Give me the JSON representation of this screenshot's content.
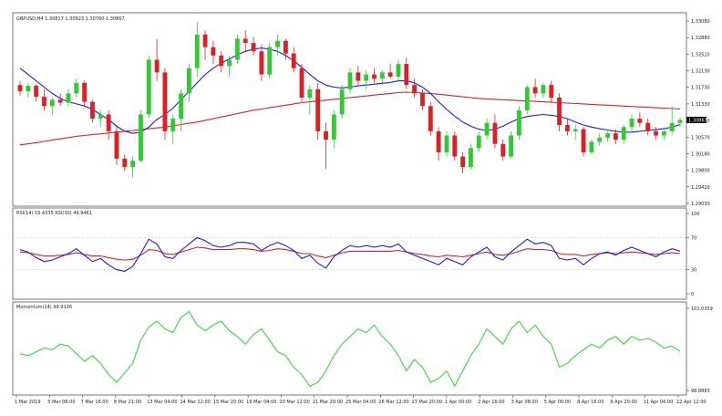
{
  "chart_data": [
    {
      "type": "candlestick",
      "title": "GBPUSD,H4  1.30817 1.30923 1.30760 1.30867",
      "price_ticks": [
        "1.33080",
        "1.32880",
        "1.32510",
        "1.32130",
        "1.31730",
        "1.31330",
        "1.30950",
        "1.30570",
        "1.30180",
        "1.29800",
        "1.29420",
        "1.29030"
      ],
      "current_price_label": "1.30867",
      "ylim": [
        1.2895,
        1.332
      ],
      "x_labels": [
        "1 Mar 2019",
        "5 Mar 08:00",
        "7 Mar 16:00",
        "8 Mar 21:00",
        "13 Mar 04:00",
        "14 Mar 12:00",
        "15 Mar 20:00",
        "19 Mar 04:00",
        "20 Mar 12:00",
        "21 Mar 20:00",
        "25 Mar 04:00",
        "26 Mar 12:00",
        "27 Mar 20:00",
        "1 Apr 00:00",
        "2 Apr 16:00",
        "3 Apr 08:00",
        "5 Apr 00:00",
        "8 Apr 16:00",
        "9 Apr 20:00",
        "11 Apr 04:00",
        "12 Apr 12:00"
      ],
      "candles": [
        [
          1.317,
          1.318,
          1.3145,
          1.3155
        ],
        [
          1.3155,
          1.3175,
          1.314,
          1.3168
        ],
        [
          1.3168,
          1.3172,
          1.313,
          1.3142
        ],
        [
          1.3142,
          1.316,
          1.311,
          1.312
        ],
        [
          1.312,
          1.314,
          1.31,
          1.3135
        ],
        [
          1.3135,
          1.315,
          1.312,
          1.3128
        ],
        [
          1.3128,
          1.316,
          1.312,
          1.315
        ],
        [
          1.315,
          1.3185,
          1.314,
          1.3175
        ],
        [
          1.3175,
          1.318,
          1.312,
          1.313
        ],
        [
          1.313,
          1.3135,
          1.308,
          1.309
        ],
        [
          1.309,
          1.311,
          1.307,
          1.31
        ],
        [
          1.31,
          1.311,
          1.304,
          1.306
        ],
        [
          1.306,
          1.3075,
          1.298,
          1.2995
        ],
        [
          1.2995,
          1.3005,
          1.2965,
          1.2975
        ],
        [
          1.2975,
          1.3,
          1.295,
          1.299
        ],
        [
          1.299,
          1.311,
          1.2985,
          1.31
        ],
        [
          1.31,
          1.324,
          1.309,
          1.323
        ],
        [
          1.323,
          1.328,
          1.318,
          1.32
        ],
        [
          1.32,
          1.321,
          1.304,
          1.306
        ],
        [
          1.306,
          1.31,
          1.303,
          1.309
        ],
        [
          1.309,
          1.316,
          1.306,
          1.315
        ],
        [
          1.315,
          1.322,
          1.313,
          1.321
        ],
        [
          1.321,
          1.332,
          1.319,
          1.329
        ],
        [
          1.329,
          1.33,
          1.323,
          1.326
        ],
        [
          1.326,
          1.3275,
          1.322,
          1.324
        ],
        [
          1.324,
          1.325,
          1.32,
          1.3215
        ],
        [
          1.3215,
          1.324,
          1.319,
          1.323
        ],
        [
          1.323,
          1.329,
          1.322,
          1.328
        ],
        [
          1.328,
          1.33,
          1.325,
          1.327
        ],
        [
          1.327,
          1.3285,
          1.324,
          1.325
        ],
        [
          1.325,
          1.3265,
          1.318,
          1.3195
        ],
        [
          1.3195,
          1.327,
          1.3185,
          1.326
        ],
        [
          1.326,
          1.329,
          1.324,
          1.3275
        ],
        [
          1.3275,
          1.328,
          1.323,
          1.3245
        ],
        [
          1.3245,
          1.326,
          1.32,
          1.321
        ],
        [
          1.321,
          1.322,
          1.313,
          1.314
        ],
        [
          1.314,
          1.317,
          1.31,
          1.316
        ],
        [
          1.316,
          1.3175,
          1.304,
          1.306
        ],
        [
          1.306,
          1.308,
          1.297,
          1.304
        ],
        [
          1.304,
          1.311,
          1.302,
          1.31
        ],
        [
          1.31,
          1.317,
          1.309,
          1.316
        ],
        [
          1.316,
          1.321,
          1.315,
          1.32
        ],
        [
          1.32,
          1.3215,
          1.317,
          1.318
        ],
        [
          1.318,
          1.3205,
          1.316,
          1.3195
        ],
        [
          1.3195,
          1.321,
          1.3175,
          1.3185
        ],
        [
          1.3185,
          1.3205,
          1.317,
          1.32
        ],
        [
          1.32,
          1.322,
          1.3185,
          1.319
        ],
        [
          1.319,
          1.323,
          1.318,
          1.322
        ],
        [
          1.322,
          1.3235,
          1.316,
          1.317
        ],
        [
          1.317,
          1.3185,
          1.314,
          1.315
        ],
        [
          1.315,
          1.316,
          1.311,
          1.312
        ],
        [
          1.312,
          1.313,
          1.305,
          1.306
        ],
        [
          1.306,
          1.307,
          1.299,
          1.301
        ],
        [
          1.301,
          1.306,
          1.3,
          1.305
        ],
        [
          1.305,
          1.306,
          1.299,
          1.3
        ],
        [
          1.3,
          1.301,
          1.296,
          1.2975
        ],
        [
          1.2975,
          1.303,
          1.297,
          1.302
        ],
        [
          1.302,
          1.306,
          1.301,
          1.305
        ],
        [
          1.305,
          1.309,
          1.304,
          1.308
        ],
        [
          1.308,
          1.31,
          1.302,
          1.303
        ],
        [
          1.303,
          1.304,
          1.299,
          1.3
        ],
        [
          1.3,
          1.306,
          1.2995,
          1.305
        ],
        [
          1.305,
          1.312,
          1.304,
          1.311
        ],
        [
          1.311,
          1.317,
          1.31,
          1.3165
        ],
        [
          1.3165,
          1.3185,
          1.314,
          1.315
        ],
        [
          1.315,
          1.3175,
          1.314,
          1.317
        ],
        [
          1.317,
          1.318,
          1.313,
          1.314
        ],
        [
          1.314,
          1.315,
          1.306,
          1.3075
        ],
        [
          1.3075,
          1.309,
          1.305,
          1.306
        ],
        [
          1.306,
          1.3075,
          1.304,
          1.3065
        ],
        [
          1.3065,
          1.307,
          1.3,
          1.301
        ],
        [
          1.301,
          1.304,
          1.3005,
          1.3035
        ],
        [
          1.3035,
          1.3055,
          1.3025,
          1.3045
        ],
        [
          1.3045,
          1.306,
          1.3035,
          1.3055
        ],
        [
          1.3055,
          1.3065,
          1.303,
          1.304
        ],
        [
          1.304,
          1.3075,
          1.303,
          1.307
        ],
        [
          1.307,
          1.31,
          1.306,
          1.309
        ],
        [
          1.309,
          1.3105,
          1.307,
          1.308
        ],
        [
          1.308,
          1.309,
          1.305,
          1.306
        ],
        [
          1.306,
          1.307,
          1.304,
          1.305
        ],
        [
          1.305,
          1.3065,
          1.304,
          1.306
        ],
        [
          1.306,
          1.312,
          1.305,
          1.308
        ],
        [
          1.308,
          1.3092,
          1.307,
          1.3087
        ]
      ],
      "ma_fast": {
        "color": "#1a1aff",
        "values": [
          1.321,
          1.3195,
          1.318,
          1.3165,
          1.315,
          1.3138,
          1.313,
          1.3125,
          1.312,
          1.3112,
          1.31,
          1.3088,
          1.3072,
          1.306,
          1.3055,
          1.3058,
          1.307,
          1.3088,
          1.31,
          1.3115,
          1.3135,
          1.3155,
          1.3175,
          1.3195,
          1.321,
          1.3222,
          1.3232,
          1.3242,
          1.325,
          1.3255,
          1.3258,
          1.3255,
          1.325,
          1.324,
          1.3228,
          1.3212,
          1.3195,
          1.318,
          1.317,
          1.3165,
          1.3163,
          1.3165,
          1.3168,
          1.317,
          1.3172,
          1.3174,
          1.3176,
          1.318,
          1.318,
          1.3175,
          1.3165,
          1.315,
          1.313,
          1.3112,
          1.3096,
          1.3082,
          1.3072,
          1.3065,
          1.3062,
          1.3065,
          1.3072,
          1.3082,
          1.309,
          1.3095,
          1.3098,
          1.31,
          1.3098,
          1.3095,
          1.309,
          1.3082,
          1.3075,
          1.307,
          1.3066,
          1.3063,
          1.306,
          1.3058,
          1.3058,
          1.306,
          1.3062,
          1.3064,
          1.3066,
          1.307,
          1.3076
        ]
      },
      "ma_slow": {
        "color": "#e02020",
        "values": [
          1.3028,
          1.303,
          1.3033,
          1.3036,
          1.3039,
          1.3042,
          1.3045,
          1.3048,
          1.305,
          1.3052,
          1.3054,
          1.3056,
          1.3058,
          1.306,
          1.3062,
          1.3064,
          1.3066,
          1.3068,
          1.307,
          1.3073,
          1.3076,
          1.3079,
          1.3082,
          1.3086,
          1.309,
          1.3094,
          1.3098,
          1.3102,
          1.3106,
          1.311,
          1.3113,
          1.3116,
          1.3119,
          1.3122,
          1.3125,
          1.3128,
          1.313,
          1.3132,
          1.3134,
          1.3136,
          1.3138,
          1.314,
          1.3142,
          1.3144,
          1.3146,
          1.3148,
          1.315,
          1.3152,
          1.3153,
          1.3152,
          1.3151,
          1.315,
          1.3148,
          1.3146,
          1.3144,
          1.3142,
          1.314,
          1.3138,
          1.3137,
          1.3136,
          1.3135,
          1.3134,
          1.3133,
          1.3132,
          1.3131,
          1.313,
          1.3129,
          1.3128,
          1.3127,
          1.3126,
          1.3125,
          1.3124,
          1.3123,
          1.3122,
          1.3121,
          1.312,
          1.3119,
          1.3118,
          1.3117,
          1.3116,
          1.3115,
          1.3114,
          1.3113
        ]
      },
      "up_color": "#2ecc2e",
      "down_color": "#e02020"
    },
    {
      "type": "line",
      "title": "RSI(14) 53.4335  RSI(30) 49.9461",
      "y_ticks": [
        "100",
        "70",
        "30",
        "0"
      ],
      "ylim": [
        0,
        100
      ],
      "series": [
        {
          "name": "RSI(14)",
          "color": "#1a1aff",
          "values": [
            55,
            52,
            45,
            40,
            42,
            46,
            50,
            56,
            48,
            40,
            44,
            36,
            30,
            28,
            34,
            50,
            68,
            62,
            46,
            44,
            54,
            62,
            70,
            66,
            60,
            58,
            60,
            64,
            64,
            62,
            54,
            60,
            64,
            60,
            54,
            44,
            48,
            38,
            32,
            46,
            54,
            60,
            58,
            60,
            58,
            60,
            58,
            62,
            52,
            48,
            44,
            40,
            36,
            44,
            40,
            36,
            46,
            52,
            58,
            46,
            42,
            52,
            60,
            68,
            62,
            64,
            60,
            44,
            42,
            44,
            36,
            44,
            50,
            52,
            48,
            54,
            58,
            54,
            50,
            46,
            52,
            56,
            53
          ]
        },
        {
          "name": "RSI(30)",
          "color": "#e02020",
          "values": [
            52,
            51,
            49,
            47,
            47,
            48,
            49,
            51,
            49,
            47,
            47,
            45,
            43,
            42,
            43,
            48,
            55,
            54,
            50,
            49,
            52,
            55,
            58,
            57,
            55,
            55,
            55,
            56,
            56,
            55,
            53,
            54,
            56,
            55,
            53,
            50,
            50,
            47,
            45,
            48,
            51,
            53,
            53,
            53,
            53,
            53,
            53,
            54,
            52,
            50,
            49,
            47,
            46,
            48,
            47,
            46,
            48,
            50,
            52,
            49,
            48,
            50,
            53,
            56,
            55,
            55,
            54,
            50,
            49,
            49,
            47,
            49,
            50,
            51,
            50,
            51,
            52,
            51,
            50,
            49,
            50,
            51,
            50
          ]
        }
      ]
    },
    {
      "type": "line",
      "title": "Momentum(14) 99.9136",
      "y_ticks": [
        "101.0359",
        "98.8883"
      ],
      "ylim": [
        98.8883,
        101.0359
      ],
      "series": [
        {
          "name": "Momentum(14)",
          "color": "#33dd33",
          "values": [
            99.85,
            99.8,
            99.9,
            100.0,
            99.95,
            100.1,
            100.05,
            99.85,
            99.65,
            99.8,
            99.6,
            99.3,
            99.1,
            99.35,
            99.6,
            100.2,
            100.55,
            100.7,
            100.5,
            100.4,
            100.8,
            100.95,
            100.6,
            100.45,
            100.6,
            100.7,
            100.45,
            100.3,
            100.1,
            100.35,
            100.5,
            100.2,
            99.9,
            99.8,
            99.5,
            99.3,
            99.0,
            99.1,
            99.4,
            99.8,
            100.1,
            100.3,
            100.5,
            100.4,
            100.6,
            100.3,
            100.1,
            99.8,
            99.4,
            99.7,
            99.5,
            99.1,
            99.2,
            99.4,
            99.0,
            99.4,
            99.8,
            100.1,
            100.5,
            100.3,
            100.1,
            100.5,
            100.7,
            100.4,
            100.6,
            100.3,
            100.1,
            99.5,
            99.6,
            99.8,
            99.95,
            100.1,
            100.0,
            100.2,
            100.3,
            100.1,
            100.3,
            100.2,
            100.25,
            100.15,
            100.0,
            100.05,
            99.91
          ]
        }
      ]
    }
  ]
}
